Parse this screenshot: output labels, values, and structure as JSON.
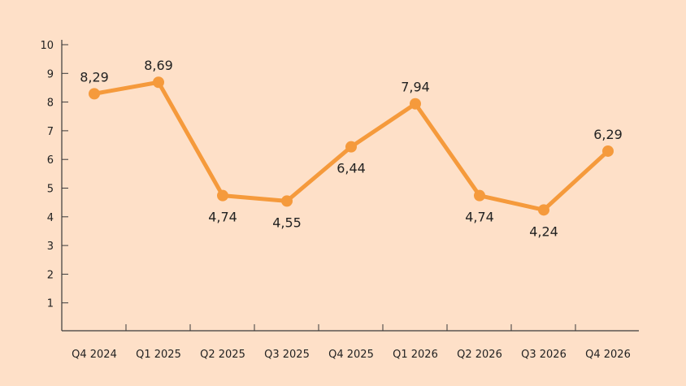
{
  "chart_data": {
    "type": "line",
    "categories": [
      "Q4 2024",
      "Q1 2025",
      "Q2 2025",
      "Q3 2025",
      "Q4 2025",
      "Q1 2026",
      "Q2 2026",
      "Q3 2026",
      "Q4 2026"
    ],
    "series": [
      {
        "values": [
          8.29,
          8.69,
          4.74,
          4.55,
          6.44,
          7.94,
          4.74,
          4.24,
          6.29
        ],
        "labels": [
          "8,29",
          "8,69",
          "4,74",
          "4,55",
          "6,44",
          "7,94",
          "4,74",
          "4,24",
          "6,29"
        ],
        "label_positions": [
          "above",
          "above",
          "below",
          "below",
          "below",
          "above",
          "below",
          "below",
          "above"
        ]
      }
    ],
    "yticks": [
      "1",
      "2",
      "3",
      "4",
      "5",
      "6",
      "7",
      "8",
      "9",
      "10"
    ],
    "ylim": [
      0,
      10
    ],
    "grid": false,
    "legend": "none",
    "title": "",
    "xlabel": "",
    "ylabel": ""
  },
  "colors": {
    "background": "#FEE0C8",
    "line": "#F59A3C",
    "axis": "#3A3A3A",
    "text": "#222222"
  }
}
